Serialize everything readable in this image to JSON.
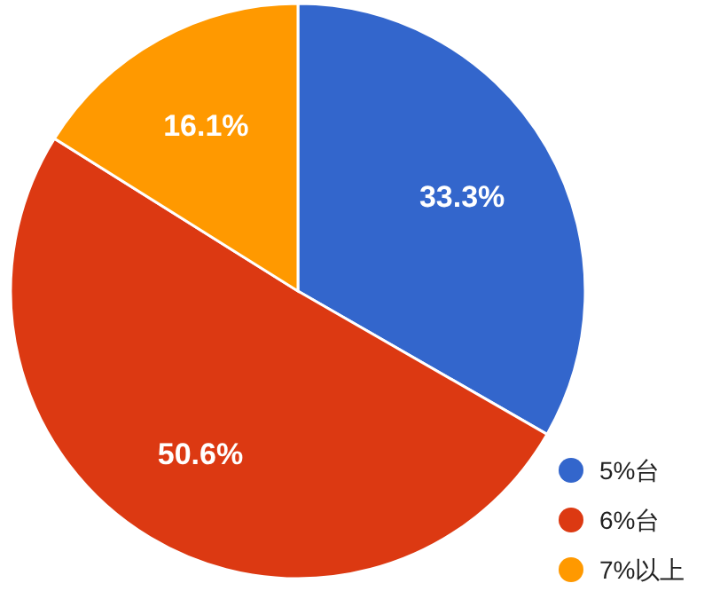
{
  "chart_data": {
    "type": "pie",
    "categories": [
      "5%台",
      "6%台",
      "7%以上"
    ],
    "values": [
      33.3,
      50.6,
      16.1
    ],
    "colors": [
      "#3366cc",
      "#dc3912",
      "#ff9900"
    ],
    "value_labels": [
      "33.3%",
      "50.6%",
      "16.1%"
    ],
    "legend": "bottom right"
  }
}
